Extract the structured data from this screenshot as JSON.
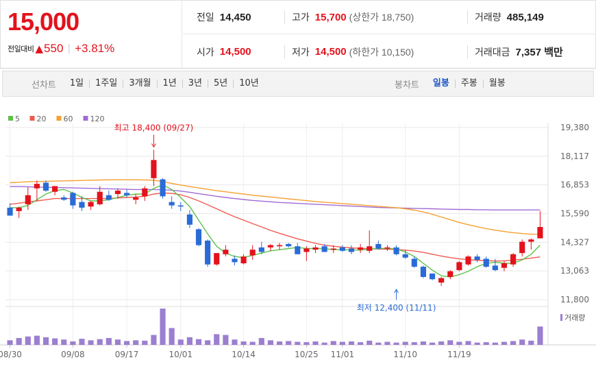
{
  "summary": {
    "price": "15,000",
    "change_label": "전일대비",
    "change_arrow": "▲",
    "change_amount": "550",
    "change_pct": "+3.81%",
    "prev_close_label": "전일",
    "prev_close": "14,450",
    "high_label": "고가",
    "high": "15,700",
    "upper_limit": "(상한가 18,750)",
    "volume_label": "거래량",
    "volume": "485,149",
    "open_label": "시가",
    "open": "14,500",
    "low_label": "저가",
    "low": "14,500",
    "lower_limit": "(하한가 10,150)",
    "amount_label": "거래대금",
    "amount": "7,357 백만"
  },
  "toolbar": {
    "line_title": "선차트",
    "line_periods": [
      "1일",
      "1주일",
      "3개월",
      "1년",
      "3년",
      "5년",
      "10년"
    ],
    "candle_title": "봉차트",
    "candle_periods": [
      "일봉",
      "주봉",
      "월봉"
    ],
    "candle_active": "일봉"
  },
  "colors": {
    "up": "#e3121c",
    "down": "#2a6bd6",
    "ma5": "#5cc24a",
    "ma20": "#ef5a50",
    "ma60": "#f5a030",
    "ma120": "#a06ad6",
    "volume": "#9b7fd0"
  },
  "chart_data": {
    "type": "candlestick",
    "legend": [
      {
        "name": "5",
        "color": "#5cc24a"
      },
      {
        "name": "20",
        "color": "#ef5a50"
      },
      {
        "name": "60",
        "color": "#f5a030"
      },
      {
        "name": "120",
        "color": "#a06ad6"
      }
    ],
    "y_ticks": [
      "19,380",
      "18,117",
      "16,853",
      "15,590",
      "14,327",
      "13,063",
      "11,800"
    ],
    "y_tick_values": [
      19380,
      18117,
      16853,
      15590,
      14327,
      13063,
      11800
    ],
    "x_ticks": [
      {
        "label": "08/30",
        "index": 0
      },
      {
        "label": "09/08",
        "index": 7
      },
      {
        "label": "09/17",
        "index": 13
      },
      {
        "label": "10/01",
        "index": 19
      },
      {
        "label": "10/14",
        "index": 26
      },
      {
        "label": "10/25",
        "index": 33
      },
      {
        "label": "11/01",
        "index": 37
      },
      {
        "label": "11/10",
        "index": 44
      },
      {
        "label": "11/19",
        "index": 50
      }
    ],
    "ylim": [
      11800,
      19380
    ],
    "high_annotation": {
      "text": "최고 18,400 (09/27)",
      "value": 18400,
      "index": 15
    },
    "low_annotation": {
      "text": "최저 12,400 (11/11)",
      "value": 12400,
      "index": 43
    },
    "volume_label": "거래량",
    "candles": [
      {
        "o": 15850,
        "h": 16050,
        "l": 15500,
        "c": 15500
      },
      {
        "o": 15700,
        "h": 15900,
        "l": 15400,
        "c": 15850
      },
      {
        "o": 16000,
        "h": 16750,
        "l": 15750,
        "c": 16400
      },
      {
        "o": 16700,
        "h": 17050,
        "l": 16150,
        "c": 16900
      },
      {
        "o": 16950,
        "h": 17050,
        "l": 16550,
        "c": 16600
      },
      {
        "o": 16550,
        "h": 16800,
        "l": 16400,
        "c": 16800
      },
      {
        "o": 16300,
        "h": 16400,
        "l": 16150,
        "c": 16200
      },
      {
        "o": 16500,
        "h": 16550,
        "l": 15800,
        "c": 15950
      },
      {
        "o": 16100,
        "h": 16350,
        "l": 15700,
        "c": 15850
      },
      {
        "o": 15900,
        "h": 16150,
        "l": 15750,
        "c": 16100
      },
      {
        "o": 16000,
        "h": 16800,
        "l": 15950,
        "c": 16550
      },
      {
        "o": 16400,
        "h": 16600,
        "l": 16150,
        "c": 16200
      },
      {
        "o": 16450,
        "h": 16700,
        "l": 16250,
        "c": 16600
      },
      {
        "o": 16500,
        "h": 16650,
        "l": 16300,
        "c": 16400
      },
      {
        "o": 16200,
        "h": 16450,
        "l": 16000,
        "c": 16300
      },
      {
        "o": 16350,
        "h": 16800,
        "l": 16150,
        "c": 16700
      },
      {
        "o": 17150,
        "h": 18400,
        "l": 16800,
        "c": 17950
      },
      {
        "o": 17100,
        "h": 17150,
        "l": 16250,
        "c": 16350
      },
      {
        "o": 16100,
        "h": 16350,
        "l": 15800,
        "c": 15950
      },
      {
        "o": 15950,
        "h": 16100,
        "l": 15700,
        "c": 15900
      },
      {
        "o": 15550,
        "h": 15750,
        "l": 14950,
        "c": 15100
      },
      {
        "o": 14900,
        "h": 14950,
        "l": 14150,
        "c": 14200
      },
      {
        "o": 14400,
        "h": 14450,
        "l": 13250,
        "c": 13350
      },
      {
        "o": 13350,
        "h": 13850,
        "l": 13300,
        "c": 13850
      },
      {
        "o": 13800,
        "h": 14200,
        "l": 13700,
        "c": 14000
      },
      {
        "o": 13600,
        "h": 13750,
        "l": 13300,
        "c": 13450
      },
      {
        "o": 13400,
        "h": 13800,
        "l": 13350,
        "c": 13700
      },
      {
        "o": 13750,
        "h": 14200,
        "l": 13550,
        "c": 14000
      },
      {
        "o": 14100,
        "h": 14350,
        "l": 13800,
        "c": 13900
      },
      {
        "o": 14100,
        "h": 14250,
        "l": 13950,
        "c": 14200
      },
      {
        "o": 14150,
        "h": 14300,
        "l": 14000,
        "c": 14200
      },
      {
        "o": 14250,
        "h": 14300,
        "l": 14100,
        "c": 14150
      },
      {
        "o": 14150,
        "h": 14300,
        "l": 13800,
        "c": 13800
      },
      {
        "o": 13900,
        "h": 14150,
        "l": 13500,
        "c": 14050
      },
      {
        "o": 14000,
        "h": 14200,
        "l": 13850,
        "c": 14100
      },
      {
        "o": 14150,
        "h": 14250,
        "l": 13900,
        "c": 13900
      },
      {
        "o": 14000,
        "h": 14200,
        "l": 13850,
        "c": 14050
      },
      {
        "o": 14100,
        "h": 14200,
        "l": 13900,
        "c": 13950
      },
      {
        "o": 14050,
        "h": 14200,
        "l": 13800,
        "c": 13900
      },
      {
        "o": 14000,
        "h": 14250,
        "l": 13850,
        "c": 14100
      },
      {
        "o": 13950,
        "h": 14850,
        "l": 13850,
        "c": 14150
      },
      {
        "o": 14250,
        "h": 14400,
        "l": 14000,
        "c": 14050
      },
      {
        "o": 14050,
        "h": 14200,
        "l": 13950,
        "c": 14100
      },
      {
        "o": 14100,
        "h": 14200,
        "l": 13750,
        "c": 13800
      },
      {
        "o": 13800,
        "h": 14000,
        "l": 13600,
        "c": 13650
      },
      {
        "o": 13600,
        "h": 13700,
        "l": 13200,
        "c": 13250
      },
      {
        "o": 13250,
        "h": 13300,
        "l": 12750,
        "c": 12800
      },
      {
        "o": 12950,
        "h": 12950,
        "l": 12650,
        "c": 12700
      },
      {
        "o": 12550,
        "h": 12800,
        "l": 12400,
        "c": 12750
      },
      {
        "o": 12800,
        "h": 13100,
        "l": 12700,
        "c": 13050
      },
      {
        "o": 13100,
        "h": 13500,
        "l": 13050,
        "c": 13450
      },
      {
        "o": 13350,
        "h": 13750,
        "l": 13300,
        "c": 13700
      },
      {
        "o": 13700,
        "h": 13800,
        "l": 13450,
        "c": 13550
      },
      {
        "o": 13600,
        "h": 13700,
        "l": 13200,
        "c": 13250
      },
      {
        "o": 13300,
        "h": 13600,
        "l": 13050,
        "c": 13100
      },
      {
        "o": 13200,
        "h": 13500,
        "l": 13050,
        "c": 13400
      },
      {
        "o": 13350,
        "h": 13850,
        "l": 13250,
        "c": 13800
      },
      {
        "o": 13850,
        "h": 14450,
        "l": 13700,
        "c": 14350
      },
      {
        "o": 14350,
        "h": 14500,
        "l": 14000,
        "c": 14450
      },
      {
        "o": 14500,
        "h": 15700,
        "l": 14500,
        "c": 15000
      }
    ],
    "ma5": [
      15850,
      15850,
      15950,
      16200,
      16450,
      16600,
      16650,
      16500,
      16300,
      16150,
      16150,
      16200,
      16300,
      16400,
      16450,
      16450,
      16700,
      16850,
      16650,
      16300,
      15900,
      15300,
      14700,
      14150,
      13850,
      13700,
      13650,
      13750,
      13850,
      13950,
      14000,
      14050,
      14100,
      14050,
      14050,
      14050,
      14000,
      14000,
      13990,
      13980,
      14020,
      14050,
      14060,
      14030,
      13900,
      13700,
      13400,
      13100,
      12850,
      12800,
      12900,
      13050,
      13250,
      13400,
      13450,
      13400,
      13400,
      13550,
      13800,
      14200
    ],
    "ma20": [
      16000,
      16050,
      16100,
      16150,
      16200,
      16250,
      16250,
      16250,
      16250,
      16250,
      16250,
      16250,
      16280,
      16300,
      16320,
      16350,
      16450,
      16500,
      16480,
      16420,
      16300,
      16150,
      15980,
      15800,
      15620,
      15450,
      15300,
      15150,
      15000,
      14850,
      14720,
      14600,
      14480,
      14380,
      14280,
      14200,
      14150,
      14110,
      14080,
      14060,
      14040,
      14030,
      14020,
      14010,
      13980,
      13940,
      13880,
      13800,
      13720,
      13650,
      13600,
      13560,
      13530,
      13520,
      13500,
      13510,
      13540,
      13580,
      13630,
      13680
    ],
    "ma60": [
      16950,
      16970,
      16990,
      17000,
      17010,
      17020,
      17030,
      17040,
      17050,
      17060,
      17070,
      17080,
      17080,
      17080,
      17080,
      17070,
      17060,
      17000,
      16920,
      16850,
      16780,
      16720,
      16660,
      16600,
      16550,
      16500,
      16450,
      16400,
      16360,
      16320,
      16280,
      16240,
      16200,
      16160,
      16120,
      16090,
      16060,
      16030,
      16000,
      15970,
      15940,
      15910,
      15880,
      15850,
      15800,
      15740,
      15660,
      15560,
      15440,
      15320,
      15200,
      15100,
      15010,
      14930,
      14860,
      14800,
      14750,
      14710,
      14680,
      14680
    ],
    "ma120": [
      16780,
      16780,
      16770,
      16760,
      16750,
      16740,
      16730,
      16720,
      16710,
      16700,
      16690,
      16680,
      16670,
      16660,
      16650,
      16650,
      16650,
      16640,
      16620,
      16580,
      16530,
      16470,
      16410,
      16350,
      16300,
      16250,
      16210,
      16170,
      16140,
      16110,
      16080,
      16060,
      16040,
      16020,
      16000,
      15980,
      15960,
      15940,
      15920,
      15900,
      15880,
      15860,
      15850,
      15840,
      15830,
      15820,
      15810,
      15800,
      15790,
      15780,
      15770,
      15770,
      15760,
      15760,
      15750,
      15750,
      15750,
      15750,
      15750,
      15750
    ],
    "volumes": [
      12,
      18,
      22,
      24,
      20,
      17,
      14,
      9,
      16,
      12,
      15,
      18,
      14,
      10,
      12,
      11,
      26,
      95,
      44,
      14,
      20,
      15,
      12,
      28,
      26,
      14,
      9,
      8,
      18,
      12,
      9,
      10,
      8,
      7,
      9,
      6,
      10,
      8,
      9,
      7,
      11,
      6,
      8,
      6,
      8,
      7,
      9,
      6,
      9,
      12,
      8,
      10,
      6,
      7,
      6,
      8,
      10,
      14,
      11,
      48
    ]
  }
}
